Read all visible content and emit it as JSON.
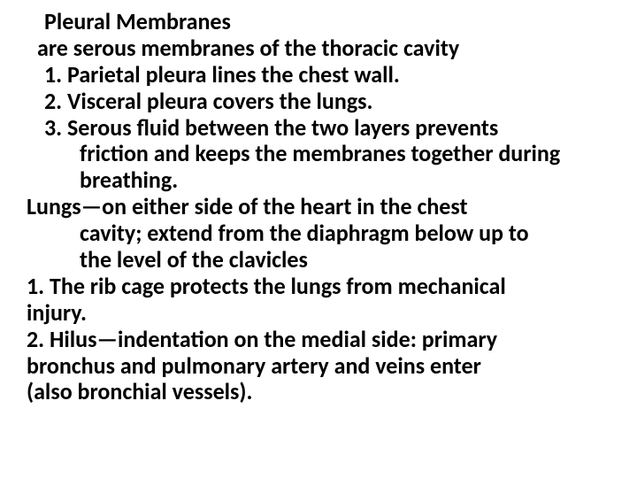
{
  "slide": {
    "title": "Pleural Membranes",
    "subtitle": " are serous membranes of the thoracic cavity",
    "item1": "1. Parietal pleura lines the chest wall.",
    "item2": "2. Visceral pleura covers the lungs.",
    "item3a": "3. Serous fluid between the two layers prevents",
    "item3b": "friction and keeps the membranes together during",
    "item3c": "breathing.",
    "section2a": "Lungs—on either side of the heart in the chest",
    "section2b": "cavity; extend from the diaphragm below up to",
    "section2c": "the level of the clavicles",
    "item4a": "1. The rib cage protects the lungs from mechanical",
    "item4b": "injury.",
    "item5a": "2. Hilus—indentation on the medial side: primary",
    "item5b": "bronchus and pulmonary artery and veins enter",
    "item5c": "(also bronchial vessels).",
    "text_color": "#000000",
    "background_color": "#ffffff",
    "font_size": 26,
    "font_weight": "bold"
  }
}
